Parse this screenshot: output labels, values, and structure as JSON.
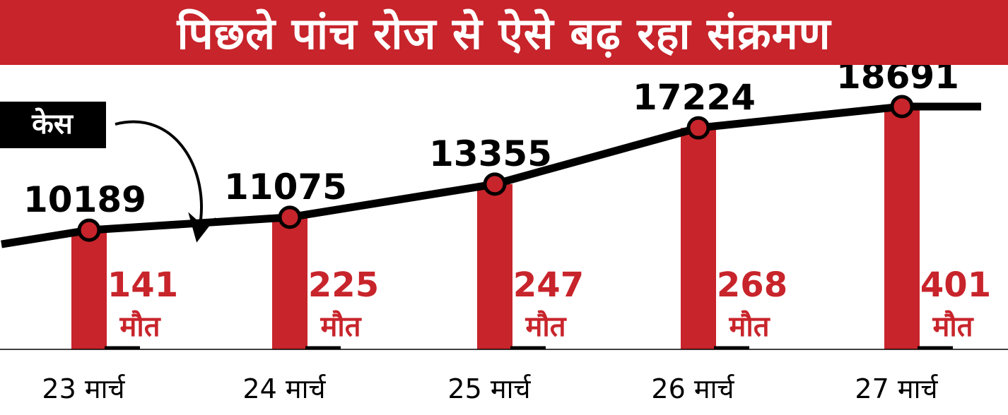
{
  "title": "पिछले पांच रोज से ऐसे बढ़ रहा संक्रमण",
  "chart_data": {
    "type": "bar+line",
    "title": "पिछले पांच रोज से ऐसे बढ़ रहा संक्रमण",
    "categories": [
      "23 मार्च",
      "24 मार्च",
      "25 मार्च",
      "26 मार्च",
      "27 मार्च"
    ],
    "series": [
      {
        "name": "केस",
        "type": "line",
        "values": [
          10189,
          11075,
          13355,
          17224,
          18691
        ]
      },
      {
        "name": "मौत",
        "type": "bar",
        "values": [
          141,
          225,
          247,
          268,
          401
        ]
      }
    ],
    "legend_label": "केस",
    "death_label": "मौत",
    "colors": {
      "accent": "#c8242b",
      "line": "#000000",
      "background": "#ffffff"
    }
  }
}
